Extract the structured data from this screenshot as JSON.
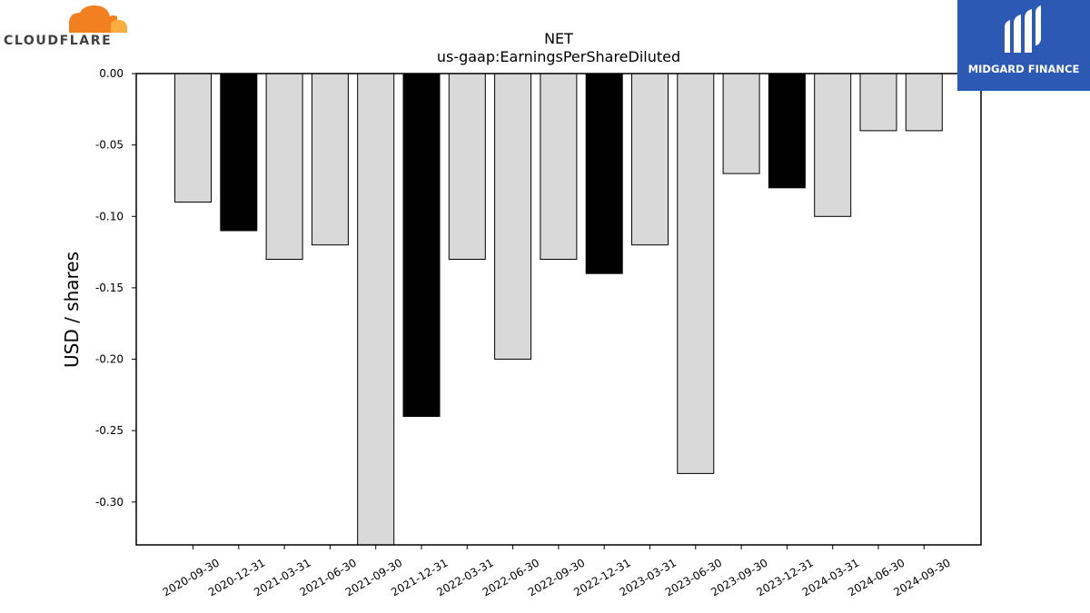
{
  "brand": {
    "left_logo_text": "CLOUDFLARE",
    "left_logo_color": "#f38020",
    "right_logo_text": "MIDGARD FINANCE",
    "right_logo_bg": "#2b59b4"
  },
  "chart_data": {
    "type": "bar",
    "title": "NET",
    "subtitle": "us-gaap:EarningsPerShareDiluted",
    "xlabel": "",
    "ylabel": "USD / shares",
    "ylim": [
      -0.33,
      0.0
    ],
    "yticks": [
      "0.00",
      "-0.05",
      "-0.10",
      "-0.15",
      "-0.20",
      "-0.25",
      "-0.30"
    ],
    "ytick_values": [
      0.0,
      -0.05,
      -0.1,
      -0.15,
      -0.2,
      -0.25,
      -0.3
    ],
    "categories": [
      "2020-09-30",
      "2020-12-31",
      "2021-03-31",
      "2021-06-30",
      "2021-09-30",
      "2021-12-31",
      "2022-03-31",
      "2022-06-30",
      "2022-09-30",
      "2022-12-31",
      "2023-03-31",
      "2023-06-30",
      "2023-09-30",
      "2023-12-31",
      "2024-03-31",
      "2024-06-30",
      "2024-09-30"
    ],
    "values": [
      -0.09,
      -0.11,
      -0.13,
      -0.12,
      -0.33,
      -0.24,
      -0.13,
      -0.2,
      -0.13,
      -0.14,
      -0.12,
      -0.28,
      -0.07,
      -0.08,
      -0.1,
      -0.04,
      -0.04
    ],
    "highlight": [
      false,
      true,
      false,
      false,
      false,
      true,
      false,
      false,
      false,
      true,
      false,
      false,
      false,
      true,
      false,
      false,
      false
    ],
    "colors": {
      "bar": "#d9d9d9",
      "highlight": "#000000",
      "edge": "#000000"
    },
    "grid": false,
    "legend": "none"
  }
}
